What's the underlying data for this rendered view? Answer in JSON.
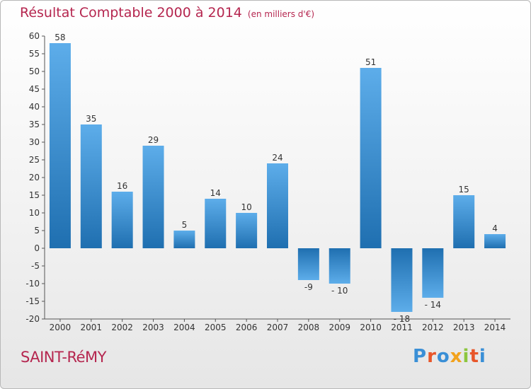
{
  "title": "Résultat Comptable 2000 à 2014",
  "subtitle": "(en milliers d'€)",
  "footer": {
    "name": "SAINT-RéMY"
  },
  "logo": {
    "letters": [
      "P",
      "r",
      "o",
      "x",
      "i",
      "t",
      "i"
    ],
    "colors": [
      "#3a8fd6",
      "#e8562a",
      "#3a8fd6",
      "#f2a21c",
      "#8cc63f",
      "#e8562a",
      "#3a8fd6"
    ]
  },
  "chart_data": {
    "type": "bar",
    "title": "Résultat Comptable 2000 à 2014",
    "categories": [
      "2000",
      "2001",
      "2002",
      "2003",
      "2004",
      "2005",
      "2006",
      "2007",
      "2008",
      "2009",
      "2010",
      "2011",
      "2012",
      "2013",
      "2014"
    ],
    "values": [
      58,
      35,
      16,
      29,
      5,
      14,
      10,
      24,
      -9,
      -10,
      51,
      -18,
      -14,
      15,
      4
    ],
    "value_labels": [
      "58",
      "35",
      "16",
      "29",
      "5",
      "14",
      "10",
      "24",
      "-9",
      "- 10",
      "51",
      "- 18",
      "- 14",
      "15",
      "4"
    ],
    "ylim": [
      -20,
      60
    ],
    "yticks": [
      -20,
      -15,
      -10,
      -5,
      0,
      5,
      10,
      15,
      20,
      25,
      30,
      35,
      40,
      45,
      50,
      55,
      60
    ],
    "grid": false,
    "colors": {
      "bar_light": "#5dadea",
      "bar_dark": "#1f6fb0",
      "axis": "#555555"
    }
  }
}
